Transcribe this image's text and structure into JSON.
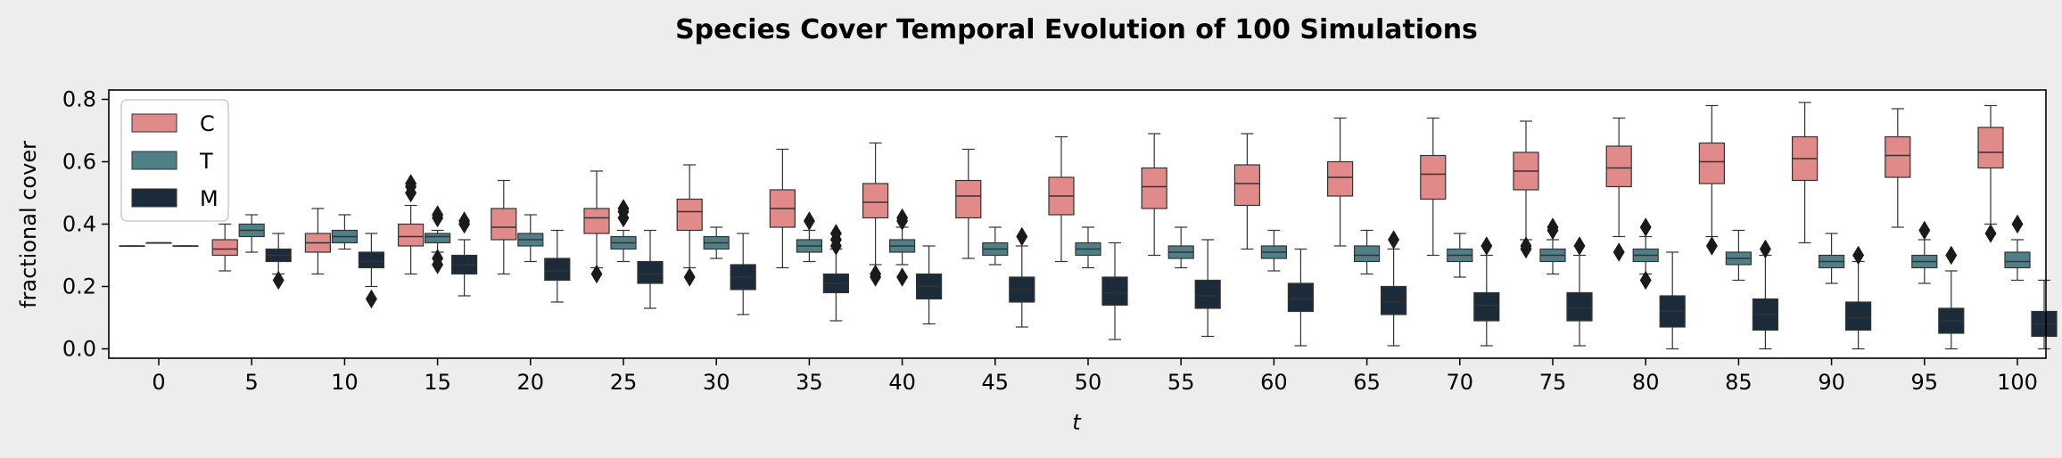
{
  "chart_data": {
    "type": "box",
    "title": "Species Cover Temporal Evolution of 100 Simulations",
    "xlabel": "t",
    "ylabel": "fractional cover",
    "ylim": [
      -0.03,
      0.83
    ],
    "yticks": [
      0.0,
      0.2,
      0.4,
      0.6,
      0.8
    ],
    "ytick_labels": [
      "0.0",
      "0.2",
      "0.4",
      "0.6",
      "0.8"
    ],
    "categories": [
      "0",
      "5",
      "10",
      "15",
      "20",
      "25",
      "30",
      "35",
      "40",
      "45",
      "50",
      "55",
      "60",
      "65",
      "70",
      "75",
      "80",
      "85",
      "90",
      "95",
      "100"
    ],
    "legend": {
      "position": "top-left",
      "entries": [
        "C",
        "T",
        "M"
      ]
    },
    "series": [
      {
        "name": "C",
        "color": "#e08a8a",
        "boxes": [
          {
            "whislo": 0.33,
            "q1": 0.33,
            "med": 0.33,
            "q3": 0.33,
            "whishi": 0.33,
            "fliers": []
          },
          {
            "whislo": 0.25,
            "q1": 0.3,
            "med": 0.32,
            "q3": 0.35,
            "whishi": 0.4,
            "fliers": []
          },
          {
            "whislo": 0.24,
            "q1": 0.31,
            "med": 0.34,
            "q3": 0.37,
            "whishi": 0.45,
            "fliers": []
          },
          {
            "whislo": 0.24,
            "q1": 0.33,
            "med": 0.36,
            "q3": 0.4,
            "whishi": 0.46,
            "fliers": [
              0.5,
              0.52,
              0.53
            ]
          },
          {
            "whislo": 0.24,
            "q1": 0.35,
            "med": 0.39,
            "q3": 0.45,
            "whishi": 0.54,
            "fliers": []
          },
          {
            "whislo": 0.26,
            "q1": 0.37,
            "med": 0.42,
            "q3": 0.45,
            "whishi": 0.57,
            "fliers": [
              0.24
            ]
          },
          {
            "whislo": 0.26,
            "q1": 0.38,
            "med": 0.44,
            "q3": 0.48,
            "whishi": 0.59,
            "fliers": [
              0.23
            ]
          },
          {
            "whislo": 0.26,
            "q1": 0.39,
            "med": 0.45,
            "q3": 0.51,
            "whishi": 0.64,
            "fliers": []
          },
          {
            "whislo": 0.27,
            "q1": 0.42,
            "med": 0.47,
            "q3": 0.53,
            "whishi": 0.66,
            "fliers": [
              0.23,
              0.24
            ]
          },
          {
            "whislo": 0.29,
            "q1": 0.42,
            "med": 0.49,
            "q3": 0.54,
            "whishi": 0.64,
            "fliers": []
          },
          {
            "whislo": 0.28,
            "q1": 0.43,
            "med": 0.49,
            "q3": 0.55,
            "whishi": 0.68,
            "fliers": []
          },
          {
            "whislo": 0.3,
            "q1": 0.45,
            "med": 0.52,
            "q3": 0.58,
            "whishi": 0.69,
            "fliers": []
          },
          {
            "whislo": 0.32,
            "q1": 0.46,
            "med": 0.53,
            "q3": 0.59,
            "whishi": 0.69,
            "fliers": []
          },
          {
            "whislo": 0.33,
            "q1": 0.49,
            "med": 0.55,
            "q3": 0.6,
            "whishi": 0.74,
            "fliers": []
          },
          {
            "whislo": 0.3,
            "q1": 0.48,
            "med": 0.56,
            "q3": 0.62,
            "whishi": 0.74,
            "fliers": []
          },
          {
            "whislo": 0.35,
            "q1": 0.51,
            "med": 0.57,
            "q3": 0.63,
            "whishi": 0.73,
            "fliers": [
              0.32,
              0.33
            ]
          },
          {
            "whislo": 0.36,
            "q1": 0.52,
            "med": 0.58,
            "q3": 0.65,
            "whishi": 0.74,
            "fliers": [
              0.31
            ]
          },
          {
            "whislo": 0.36,
            "q1": 0.53,
            "med": 0.6,
            "q3": 0.66,
            "whishi": 0.78,
            "fliers": [
              0.33
            ]
          },
          {
            "whislo": 0.34,
            "q1": 0.54,
            "med": 0.61,
            "q3": 0.68,
            "whishi": 0.79,
            "fliers": []
          },
          {
            "whislo": 0.39,
            "q1": 0.55,
            "med": 0.62,
            "q3": 0.68,
            "whishi": 0.77,
            "fliers": []
          },
          {
            "whislo": 0.4,
            "q1": 0.58,
            "med": 0.63,
            "q3": 0.71,
            "whishi": 0.78,
            "fliers": [
              0.37
            ]
          }
        ]
      },
      {
        "name": "T",
        "color": "#4f8088",
        "boxes": [
          {
            "whislo": 0.34,
            "q1": 0.34,
            "med": 0.34,
            "q3": 0.34,
            "whishi": 0.34,
            "fliers": []
          },
          {
            "whislo": 0.31,
            "q1": 0.36,
            "med": 0.38,
            "q3": 0.4,
            "whishi": 0.43,
            "fliers": []
          },
          {
            "whislo": 0.32,
            "q1": 0.34,
            "med": 0.36,
            "q3": 0.38,
            "whishi": 0.43,
            "fliers": []
          },
          {
            "whislo": 0.31,
            "q1": 0.34,
            "med": 0.36,
            "q3": 0.37,
            "whishi": 0.38,
            "fliers": [
              0.27,
              0.29,
              0.42,
              0.43
            ]
          },
          {
            "whislo": 0.28,
            "q1": 0.33,
            "med": 0.35,
            "q3": 0.37,
            "whishi": 0.43,
            "fliers": []
          },
          {
            "whislo": 0.28,
            "q1": 0.32,
            "med": 0.34,
            "q3": 0.36,
            "whishi": 0.38,
            "fliers": [
              0.42,
              0.44,
              0.45
            ]
          },
          {
            "whislo": 0.29,
            "q1": 0.32,
            "med": 0.34,
            "q3": 0.36,
            "whishi": 0.39,
            "fliers": []
          },
          {
            "whislo": 0.28,
            "q1": 0.31,
            "med": 0.33,
            "q3": 0.35,
            "whishi": 0.38,
            "fliers": [
              0.41
            ]
          },
          {
            "whislo": 0.27,
            "q1": 0.31,
            "med": 0.33,
            "q3": 0.35,
            "whishi": 0.39,
            "fliers": [
              0.23,
              0.41,
              0.42
            ]
          },
          {
            "whislo": 0.27,
            "q1": 0.3,
            "med": 0.32,
            "q3": 0.34,
            "whishi": 0.39,
            "fliers": []
          },
          {
            "whislo": 0.26,
            "q1": 0.3,
            "med": 0.32,
            "q3": 0.34,
            "whishi": 0.39,
            "fliers": []
          },
          {
            "whislo": 0.26,
            "q1": 0.29,
            "med": 0.31,
            "q3": 0.33,
            "whishi": 0.39,
            "fliers": []
          },
          {
            "whislo": 0.25,
            "q1": 0.29,
            "med": 0.31,
            "q3": 0.33,
            "whishi": 0.38,
            "fliers": []
          },
          {
            "whislo": 0.24,
            "q1": 0.28,
            "med": 0.3,
            "q3": 0.33,
            "whishi": 0.38,
            "fliers": []
          },
          {
            "whislo": 0.23,
            "q1": 0.28,
            "med": 0.3,
            "q3": 0.32,
            "whishi": 0.37,
            "fliers": []
          },
          {
            "whislo": 0.24,
            "q1": 0.28,
            "med": 0.3,
            "q3": 0.32,
            "whishi": 0.35,
            "fliers": [
              0.38,
              0.39
            ]
          },
          {
            "whislo": 0.24,
            "q1": 0.28,
            "med": 0.3,
            "q3": 0.32,
            "whishi": 0.36,
            "fliers": [
              0.22,
              0.39
            ]
          },
          {
            "whislo": 0.22,
            "q1": 0.27,
            "med": 0.29,
            "q3": 0.31,
            "whishi": 0.38,
            "fliers": []
          },
          {
            "whislo": 0.21,
            "q1": 0.26,
            "med": 0.28,
            "q3": 0.3,
            "whishi": 0.37,
            "fliers": []
          },
          {
            "whislo": 0.21,
            "q1": 0.26,
            "med": 0.28,
            "q3": 0.3,
            "whishi": 0.35,
            "fliers": [
              0.38
            ]
          },
          {
            "whislo": 0.22,
            "q1": 0.26,
            "med": 0.28,
            "q3": 0.31,
            "whishi": 0.35,
            "fliers": [
              0.4
            ]
          }
        ]
      },
      {
        "name": "M",
        "color": "#1c2b3a",
        "boxes": [
          {
            "whislo": 0.33,
            "q1": 0.33,
            "med": 0.33,
            "q3": 0.33,
            "whishi": 0.33,
            "fliers": []
          },
          {
            "whislo": 0.24,
            "q1": 0.28,
            "med": 0.3,
            "q3": 0.32,
            "whishi": 0.37,
            "fliers": [
              0.22
            ]
          },
          {
            "whislo": 0.2,
            "q1": 0.26,
            "med": 0.28,
            "q3": 0.31,
            "whishi": 0.37,
            "fliers": [
              0.16
            ]
          },
          {
            "whislo": 0.17,
            "q1": 0.24,
            "med": 0.27,
            "q3": 0.3,
            "whishi": 0.35,
            "fliers": [
              0.4,
              0.41
            ]
          },
          {
            "whislo": 0.15,
            "q1": 0.22,
            "med": 0.25,
            "q3": 0.29,
            "whishi": 0.38,
            "fliers": []
          },
          {
            "whislo": 0.13,
            "q1": 0.21,
            "med": 0.24,
            "q3": 0.28,
            "whishi": 0.38,
            "fliers": []
          },
          {
            "whislo": 0.11,
            "q1": 0.19,
            "med": 0.23,
            "q3": 0.27,
            "whishi": 0.37,
            "fliers": []
          },
          {
            "whislo": 0.09,
            "q1": 0.18,
            "med": 0.21,
            "q3": 0.24,
            "whishi": 0.32,
            "fliers": [
              0.33,
              0.35,
              0.37
            ]
          },
          {
            "whislo": 0.08,
            "q1": 0.16,
            "med": 0.2,
            "q3": 0.24,
            "whishi": 0.33,
            "fliers": []
          },
          {
            "whislo": 0.07,
            "q1": 0.15,
            "med": 0.19,
            "q3": 0.23,
            "whishi": 0.33,
            "fliers": [
              0.36
            ]
          },
          {
            "whislo": 0.03,
            "q1": 0.14,
            "med": 0.18,
            "q3": 0.23,
            "whishi": 0.34,
            "fliers": []
          },
          {
            "whislo": 0.04,
            "q1": 0.13,
            "med": 0.17,
            "q3": 0.22,
            "whishi": 0.35,
            "fliers": []
          },
          {
            "whislo": 0.01,
            "q1": 0.12,
            "med": 0.16,
            "q3": 0.21,
            "whishi": 0.32,
            "fliers": []
          },
          {
            "whislo": 0.01,
            "q1": 0.11,
            "med": 0.15,
            "q3": 0.2,
            "whishi": 0.32,
            "fliers": [
              0.35
            ]
          },
          {
            "whislo": 0.01,
            "q1": 0.09,
            "med": 0.14,
            "q3": 0.18,
            "whishi": 0.3,
            "fliers": [
              0.33
            ]
          },
          {
            "whislo": 0.01,
            "q1": 0.09,
            "med": 0.13,
            "q3": 0.18,
            "whishi": 0.3,
            "fliers": [
              0.33
            ]
          },
          {
            "whislo": 0.0,
            "q1": 0.07,
            "med": 0.12,
            "q3": 0.17,
            "whishi": 0.31,
            "fliers": []
          },
          {
            "whislo": 0.0,
            "q1": 0.06,
            "med": 0.11,
            "q3": 0.16,
            "whishi": 0.3,
            "fliers": [
              0.32
            ]
          },
          {
            "whislo": 0.0,
            "q1": 0.06,
            "med": 0.1,
            "q3": 0.15,
            "whishi": 0.28,
            "fliers": [
              0.3
            ]
          },
          {
            "whislo": 0.0,
            "q1": 0.05,
            "med": 0.09,
            "q3": 0.13,
            "whishi": 0.25,
            "fliers": [
              0.3
            ]
          },
          {
            "whislo": 0.0,
            "q1": 0.04,
            "med": 0.08,
            "q3": 0.12,
            "whishi": 0.22,
            "fliers": []
          }
        ]
      }
    ]
  }
}
